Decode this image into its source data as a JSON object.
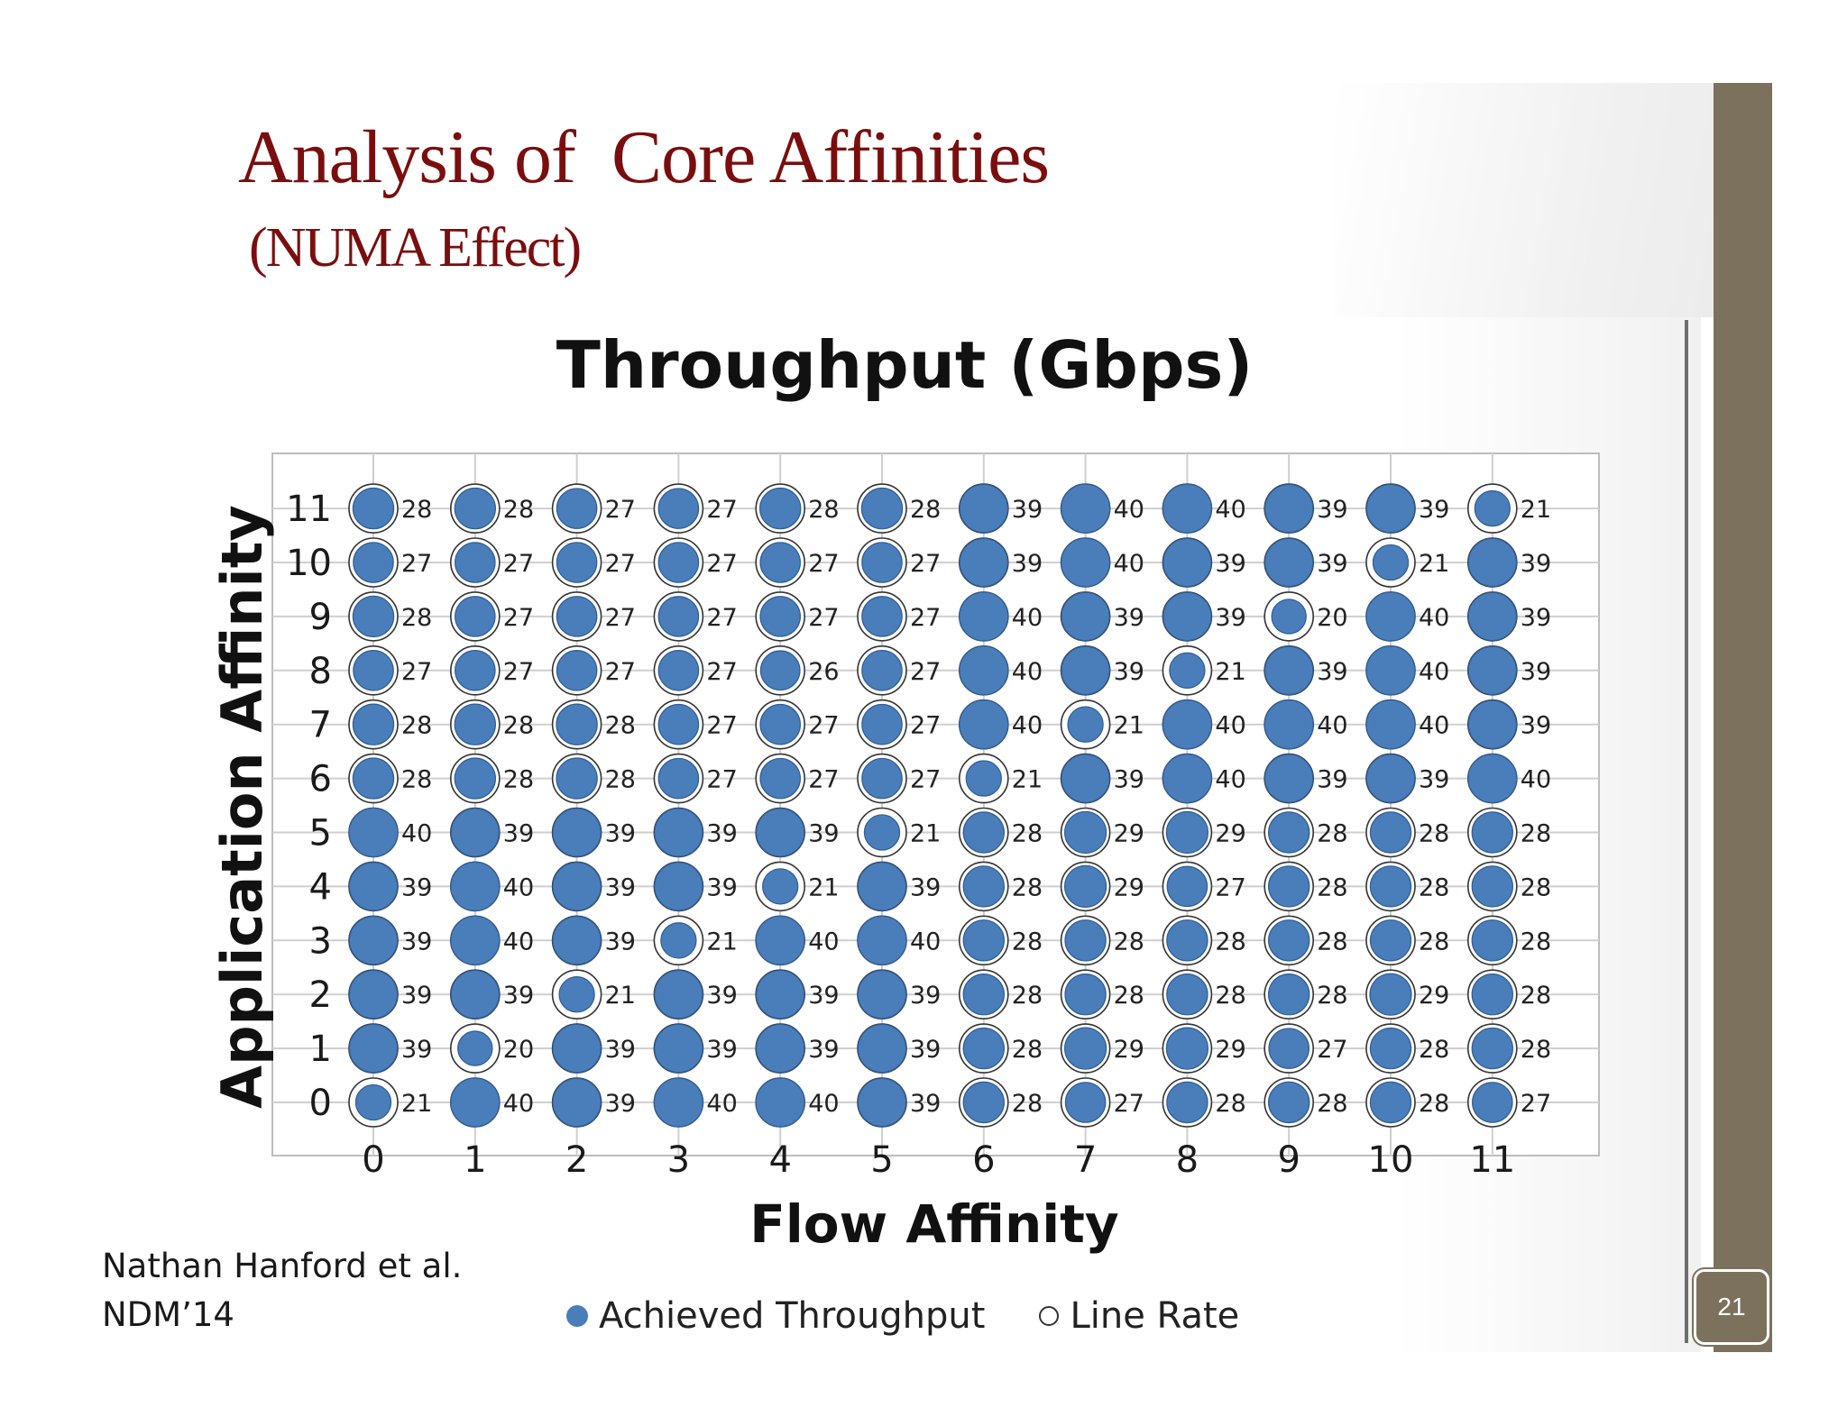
{
  "slide": {
    "title": "Analysis of  Core Affinities",
    "subtitle": "(NUMA Effect)",
    "citation_line1": "Nathan Hanford et al.",
    "citation_line2": "NDM’14",
    "page_number": "21",
    "accent_color": "#7a0e0e",
    "sidebar_color": "#7b715d"
  },
  "chart_data": {
    "type": "scatter",
    "title": "Throughput (Gbps)",
    "xlabel": "Flow Affinity",
    "ylabel": "Application Affinity",
    "x_ticks": [
      "0",
      "1",
      "2",
      "3",
      "4",
      "5",
      "6",
      "7",
      "8",
      "9",
      "10",
      "11"
    ],
    "y_ticks": [
      "0",
      "1",
      "2",
      "3",
      "4",
      "5",
      "6",
      "7",
      "8",
      "9",
      "10",
      "11"
    ],
    "xlim": [
      0,
      11
    ],
    "ylim": [
      0,
      11
    ],
    "grid": true,
    "legend_placement": "bottom",
    "series": [
      {
        "name": "Achieved Throughput",
        "color": "#4a7ebb"
      },
      {
        "name": "Line Rate",
        "color": "#ffffff"
      }
    ],
    "throughput_by_app_affinity": [
      [
        21,
        40,
        39,
        40,
        40,
        39,
        28,
        27,
        28,
        28,
        28,
        27
      ],
      [
        39,
        20,
        39,
        39,
        39,
        39,
        28,
        29,
        29,
        27,
        28,
        28
      ],
      [
        39,
        39,
        21,
        39,
        39,
        39,
        28,
        28,
        28,
        28,
        29,
        28
      ],
      [
        39,
        40,
        39,
        21,
        40,
        40,
        28,
        28,
        28,
        28,
        28,
        28
      ],
      [
        39,
        40,
        39,
        39,
        21,
        39,
        28,
        29,
        27,
        28,
        28,
        28
      ],
      [
        40,
        39,
        39,
        39,
        39,
        21,
        28,
        29,
        29,
        28,
        28,
        28
      ],
      [
        28,
        28,
        28,
        27,
        27,
        27,
        21,
        39,
        40,
        39,
        39,
        40
      ],
      [
        28,
        28,
        28,
        27,
        27,
        27,
        40,
        21,
        40,
        40,
        40,
        39
      ],
      [
        27,
        27,
        27,
        27,
        26,
        27,
        40,
        39,
        21,
        39,
        40,
        39
      ],
      [
        28,
        27,
        27,
        27,
        27,
        27,
        40,
        39,
        39,
        20,
        40,
        39
      ],
      [
        27,
        27,
        27,
        27,
        27,
        27,
        39,
        40,
        39,
        39,
        21,
        39
      ],
      [
        28,
        28,
        27,
        27,
        28,
        28,
        39,
        40,
        40,
        39,
        39,
        21
      ]
    ]
  }
}
